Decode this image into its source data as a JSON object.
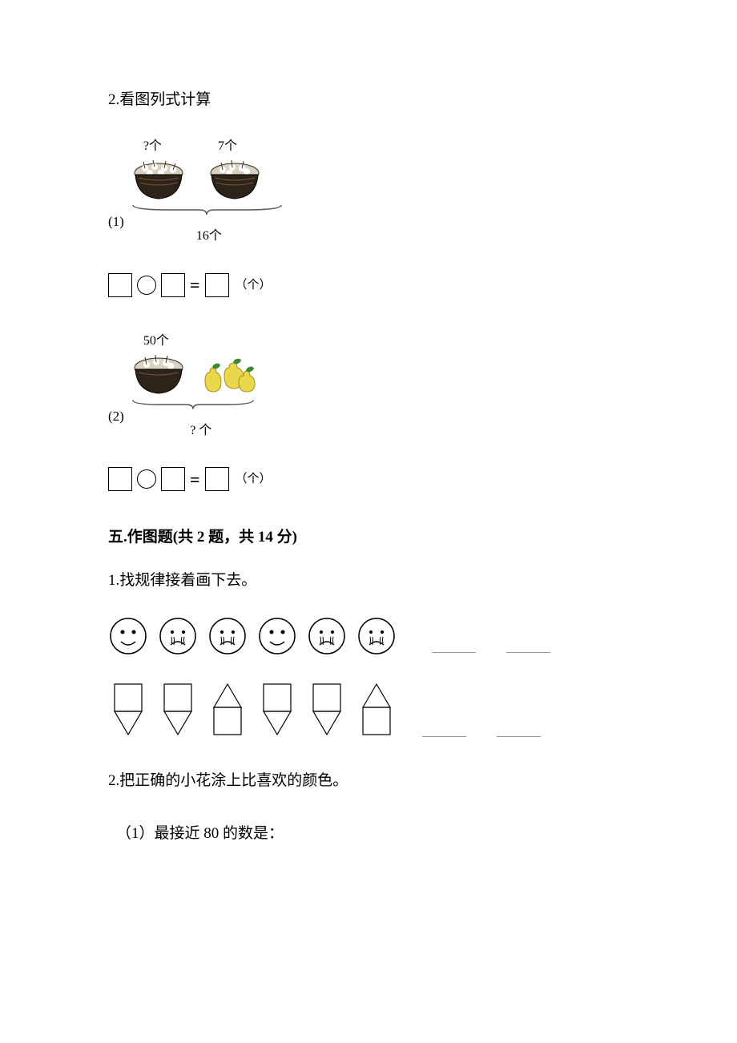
{
  "q2": {
    "title": "2.看图列式计算",
    "fig1": {
      "index": "(1)",
      "label_left": "?个",
      "label_right": "7个",
      "total_label": "16个",
      "basket_fill": "#2e2318",
      "basket_detail": "#6b5a3f"
    },
    "fig2": {
      "index": "(2)",
      "label_top": "50个",
      "bottom_label": "? 个",
      "pear_fill": "#e8d84a",
      "leaf_fill": "#3a8b2e"
    },
    "equation_unit": "（个）"
  },
  "section5": {
    "header": "五.作图题(共 2 题，共 14 分)",
    "q1": {
      "title": "1.找规律接着画下去。",
      "faces": [
        "smile",
        "cry",
        "cry",
        "smile",
        "cry",
        "cry"
      ],
      "shapes": [
        "down",
        "down",
        "up",
        "down",
        "down",
        "up"
      ],
      "stroke": "#000000",
      "stroke_width": 1.5,
      "fill": "none"
    },
    "q2": {
      "title": "2.把正确的小花涂上比喜欢的颜色。",
      "sub1": "（1）最接近 80 的数是："
    }
  },
  "colors": {
    "text": "#000000",
    "bg": "#ffffff",
    "brace": "#555555"
  }
}
